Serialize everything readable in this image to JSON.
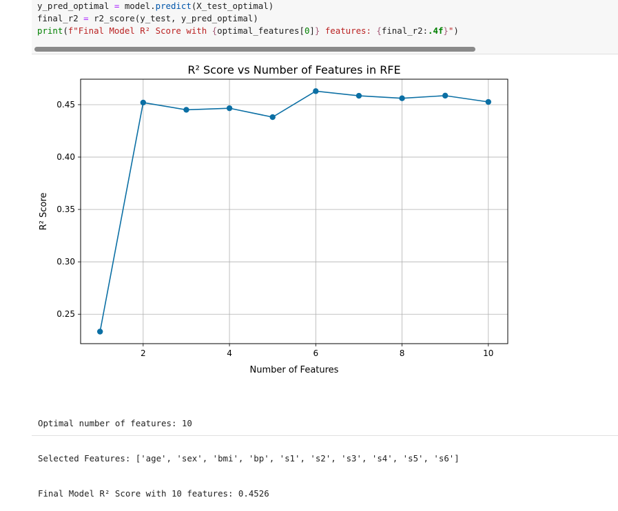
{
  "code": {
    "line1": {
      "var": "y_pred_optimal",
      "eq": "=",
      "obj": "model.",
      "method": "predict",
      "args": "(X_test_optimal)"
    },
    "line2": {
      "var": "final_r2",
      "eq": "=",
      "call": "r2_score(y_test, y_pred_optimal)"
    },
    "line3": {
      "fn": "print",
      "paren_open": "(",
      "str_a": "f\"Final Model R² Score with ",
      "brace_open_1": "{",
      "expr_1": "optimal_features",
      "idx_open": "[",
      "idx_num": "0",
      "idx_close": "]",
      "brace_close_1": "}",
      "str_b": " features: ",
      "brace_open_2": "{",
      "expr_2": "final_r2:",
      "fmt": ".4f",
      "brace_close_2": "}",
      "str_c": "\"",
      "paren_close": ")"
    },
    "scrollbar_fraction": 0.8
  },
  "chart_data": {
    "type": "line",
    "title": "R² Score vs Number of Features in RFE",
    "xlabel": "Number of Features",
    "ylabel": "R² Score",
    "x": [
      1,
      2,
      3,
      4,
      5,
      6,
      7,
      8,
      9,
      10
    ],
    "series": [
      {
        "values": [
          0.2334,
          0.452,
          0.4451,
          0.4466,
          0.4381,
          0.4629,
          0.4585,
          0.4561,
          0.4586,
          0.4526
        ]
      }
    ],
    "xticks": [
      2,
      4,
      6,
      8,
      10
    ],
    "xtick_labels": [
      "2",
      "4",
      "6",
      "8",
      "10"
    ],
    "yticks": [
      0.25,
      0.3,
      0.35,
      0.4,
      0.45
    ],
    "ytick_labels": [
      "0.25",
      "0.30",
      "0.35",
      "0.40",
      "0.45"
    ],
    "xlim": [
      0.55,
      10.45
    ],
    "ylim": [
      0.2219,
      0.4743
    ],
    "grid": true,
    "marker": "circle",
    "line_color": "#0b6fa4"
  },
  "output": {
    "line1": "Optimal number of features: 10",
    "line2": "Selected Features: ['age', 'sex', 'bmi', 'bp', 's1', 's2', 's3', 's4', 's5', 's6']",
    "line3": "Final Model R² Score with 10 features: 0.4526"
  }
}
